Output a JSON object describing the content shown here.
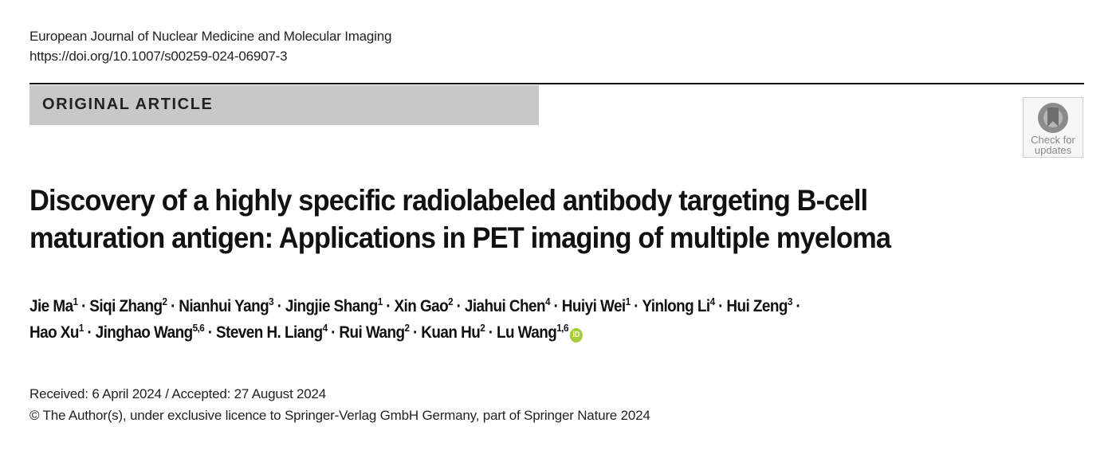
{
  "journal": {
    "name": "European Journal of Nuclear Medicine and Molecular Imaging",
    "doi": "https://doi.org/10.1007/s00259-024-06907-3"
  },
  "section_label": "ORIGINAL ARTICLE",
  "check_for_updates": {
    "line1": "Check for",
    "line2": "updates",
    "icon": "bookmark-circle-icon"
  },
  "title": {
    "line1": "Discovery of a highly specific radiolabeled antibody targeting B-cell",
    "line2": "maturation antigen: Applications in PET imaging of multiple myeloma"
  },
  "authors": [
    {
      "name": "Jie Ma",
      "sup": "1"
    },
    {
      "name": "Siqi Zhang",
      "sup": "2"
    },
    {
      "name": "Nianhui Yang",
      "sup": "3"
    },
    {
      "name": "Jingjie Shang",
      "sup": "1"
    },
    {
      "name": "Xin Gao",
      "sup": "2"
    },
    {
      "name": "Jiahui Chen",
      "sup": "4"
    },
    {
      "name": "Huiyi Wei",
      "sup": "1"
    },
    {
      "name": "Yinlong Li",
      "sup": "4"
    },
    {
      "name": "Hui Zeng",
      "sup": "3"
    },
    {
      "name": "Hao Xu",
      "sup": "1"
    },
    {
      "name": "Jinghao Wang",
      "sup": "5,6"
    },
    {
      "name": "Steven H. Liang",
      "sup": "4"
    },
    {
      "name": "Rui Wang",
      "sup": "2"
    },
    {
      "name": "Kuan Hu",
      "sup": "2"
    },
    {
      "name": "Lu Wang",
      "sup": "1,6",
      "orcid": true
    }
  ],
  "orcid_label": "iD",
  "dates": "Received: 6 April 2024 / Accepted: 27 August 2024",
  "copyright": "© The Author(s), under exclusive licence to Springer-Verlag GmbH Germany, part of Springer Nature 2024"
}
